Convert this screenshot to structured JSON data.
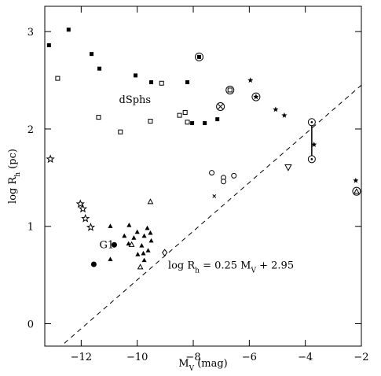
{
  "chart_data": {
    "type": "scatter",
    "x_label": [
      "M",
      "V",
      " (mag)"
    ],
    "y_label": [
      "log R",
      "h",
      " (pc)"
    ],
    "xlim": [
      -13.3,
      -2
    ],
    "ylim": [
      -0.23,
      3.26
    ],
    "xticks": [
      {
        "value": -12,
        "label": "−12"
      },
      {
        "value": -10,
        "label": "−10"
      },
      {
        "value": -8,
        "label": "−8"
      },
      {
        "value": -6,
        "label": "−6"
      },
      {
        "value": -4,
        "label": "−4"
      },
      {
        "value": -2,
        "label": "−2"
      }
    ],
    "yticks": [
      0,
      1,
      2,
      3
    ],
    "color": "#000000",
    "fit": {
      "slope": 0.25,
      "intercept": 2.95,
      "dashed": true
    },
    "annotations": [
      {
        "parts": [
          "dSphs"
        ],
        "x": -10.65,
        "y": 2.3
      },
      {
        "parts": [
          "G1"
        ],
        "x": -11.35,
        "y": 0.81
      },
      {
        "parts": [
          "log R",
          "h",
          " = 0.25 M",
          "V",
          " + 2.95"
        ],
        "x": -8.9,
        "y": 0.6
      }
    ],
    "series": [
      {
        "marker": "square-filled",
        "x": [
          -13.15,
          -12.45,
          -11.63,
          -11.35,
          -10.06,
          -9.5,
          -8.21,
          -8.04,
          -7.59,
          -7.14
        ],
        "y": [
          2.86,
          3.02,
          2.77,
          2.62,
          2.55,
          2.48,
          2.48,
          2.06,
          2.06,
          2.1
        ]
      },
      {
        "marker": "circled-square-filled",
        "x": [
          -7.79
        ],
        "y": [
          2.74
        ]
      },
      {
        "marker": "square-open",
        "x": [
          -12.84,
          -11.38,
          -10.6,
          -9.53,
          -9.13,
          -8.49,
          -8.29,
          -8.21
        ],
        "y": [
          2.52,
          2.12,
          1.97,
          2.08,
          2.47,
          2.14,
          2.17,
          2.07
        ]
      },
      {
        "marker": "circled-square-open",
        "x": [
          -6.69
        ],
        "y": [
          2.4
        ]
      },
      {
        "marker": "star-filled",
        "x": [
          -5.96,
          -5.06,
          -4.75,
          -3.69,
          -2.2
        ],
        "y": [
          2.5,
          2.2,
          2.14,
          1.84,
          1.47
        ]
      },
      {
        "marker": "circled-cross",
        "x": [
          -7.03
        ],
        "y": [
          2.23
        ]
      },
      {
        "marker": "circled-star",
        "x": [
          -5.76
        ],
        "y": [
          2.33
        ]
      },
      {
        "marker": "circled-dot",
        "x": [
          -3.77,
          -3.77
        ],
        "y": [
          2.07,
          1.69
        ],
        "connected": true
      },
      {
        "marker": "triangle-down-open",
        "x": [
          -4.61
        ],
        "y": [
          1.61
        ]
      },
      {
        "marker": "circled-triangle",
        "x": [
          -2.17
        ],
        "y": [
          1.36
        ]
      },
      {
        "marker": "circle-open",
        "x": [
          -7.34,
          -6.92,
          -6.92,
          -6.55
        ],
        "y": [
          1.55,
          1.5,
          1.46,
          1.52
        ]
      },
      {
        "marker": "x",
        "x": [
          -7.25
        ],
        "y": [
          1.31
        ]
      },
      {
        "marker": "star-open",
        "x": [
          -13.1,
          -12.03,
          -11.94,
          -11.85,
          -11.66
        ],
        "y": [
          1.69,
          1.23,
          1.18,
          1.08,
          0.99
        ]
      },
      {
        "marker": "triangle-filled",
        "x": [
          -10.96,
          -10.29,
          -10.0,
          -9.64,
          -10.46,
          -10.12,
          -9.75,
          -9.53,
          -9.5,
          -9.98,
          -9.78,
          -9.61,
          -9.75,
          -10.96,
          -10.31,
          -9.84
        ],
        "y": [
          1.0,
          1.01,
          0.94,
          0.98,
          0.9,
          0.88,
          0.9,
          0.93,
          0.85,
          0.71,
          0.72,
          0.75,
          0.65,
          0.66,
          0.82,
          0.8
        ]
      },
      {
        "marker": "triangle-open",
        "x": [
          -9.53,
          -10.2,
          -9.89
        ],
        "y": [
          1.25,
          0.81,
          0.58
        ]
      },
      {
        "marker": "circle-filled",
        "x": [
          -10.82,
          -11.55
        ],
        "y": [
          0.81,
          0.61
        ]
      },
      {
        "marker": "diamond-open",
        "x": [
          -9.02
        ],
        "y": [
          0.73
        ]
      }
    ]
  }
}
